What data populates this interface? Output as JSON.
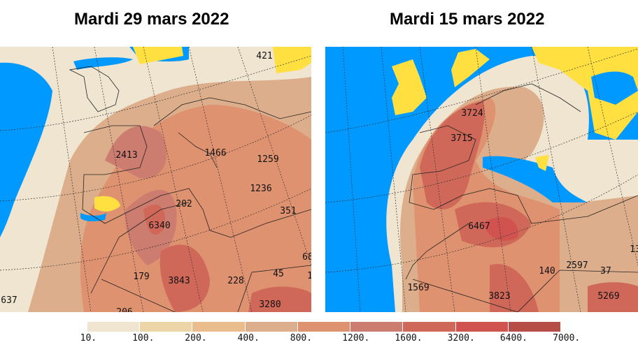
{
  "panels": [
    {
      "title": "Mardi 29 mars 2022",
      "labels": [
        "421",
        "2413",
        "1466",
        "1259",
        "1236",
        "202",
        "351",
        "6340",
        "179",
        "3843",
        "228",
        "45",
        "637",
        "206",
        "3280",
        "68",
        "1"
      ]
    },
    {
      "title": "Mardi 15 mars 2022",
      "labels": [
        "3724",
        "3715",
        "6467",
        "140",
        "2597",
        "37",
        "1569",
        "3823",
        "5269",
        "13"
      ]
    }
  ],
  "colorbar": {
    "ticks": [
      "10.",
      "100.",
      "200.",
      "400.",
      "800.",
      "1200.",
      "1600.",
      "3200.",
      "6400.",
      "7000."
    ],
    "colors": [
      "#efe5d0",
      "#ecd6a8",
      "#ebbd8d",
      "#dcae8b",
      "#df9270",
      "#cd7d70",
      "#d0685a",
      "#d05350",
      "#b64e47"
    ]
  },
  "colors": {
    "sea": "#0099ff",
    "land_no_data": "#ffe040"
  }
}
